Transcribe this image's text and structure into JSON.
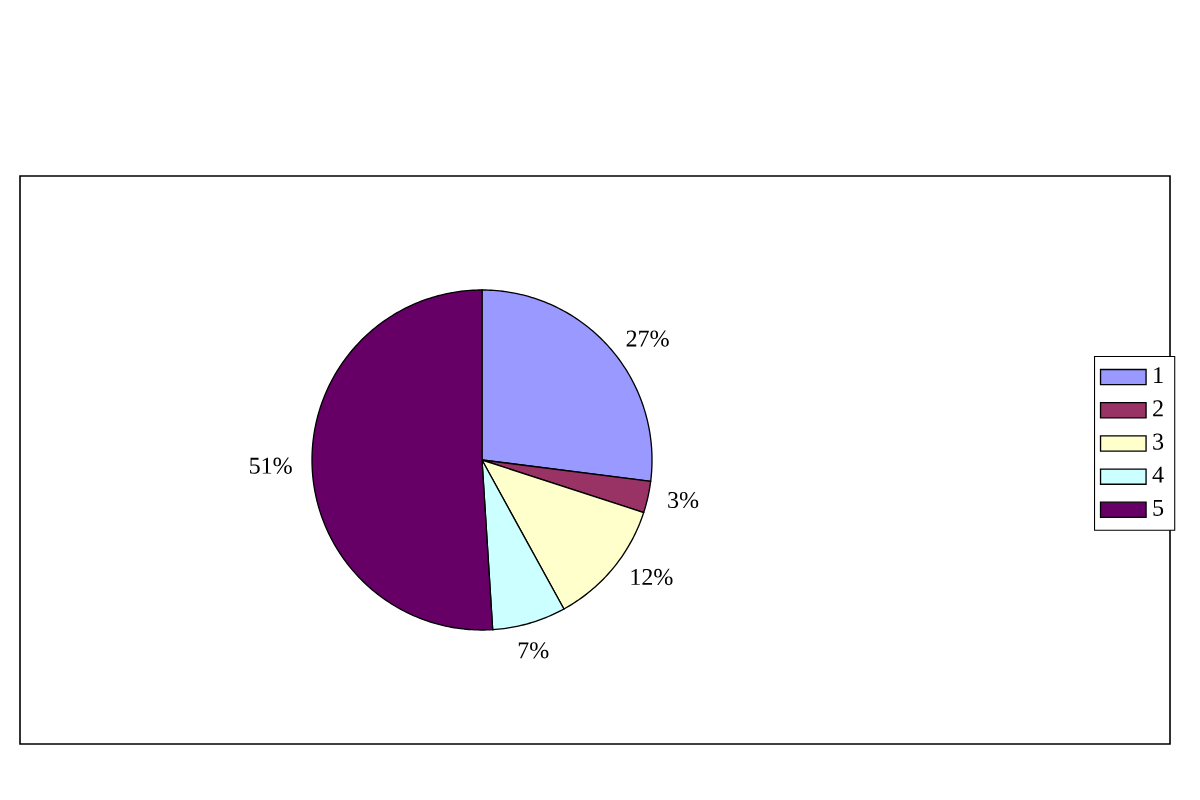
{
  "chart_data": {
    "type": "pie",
    "categories": [
      "1",
      "2",
      "3",
      "4",
      "5"
    ],
    "values": [
      27,
      3,
      12,
      7,
      51
    ],
    "value_labels": [
      "27%",
      "3%",
      "12%",
      "7%",
      "51%"
    ],
    "colors": [
      "#9999ff",
      "#993366",
      "#ffffcc",
      "#ccffff",
      "#660066"
    ],
    "legend": "right"
  }
}
